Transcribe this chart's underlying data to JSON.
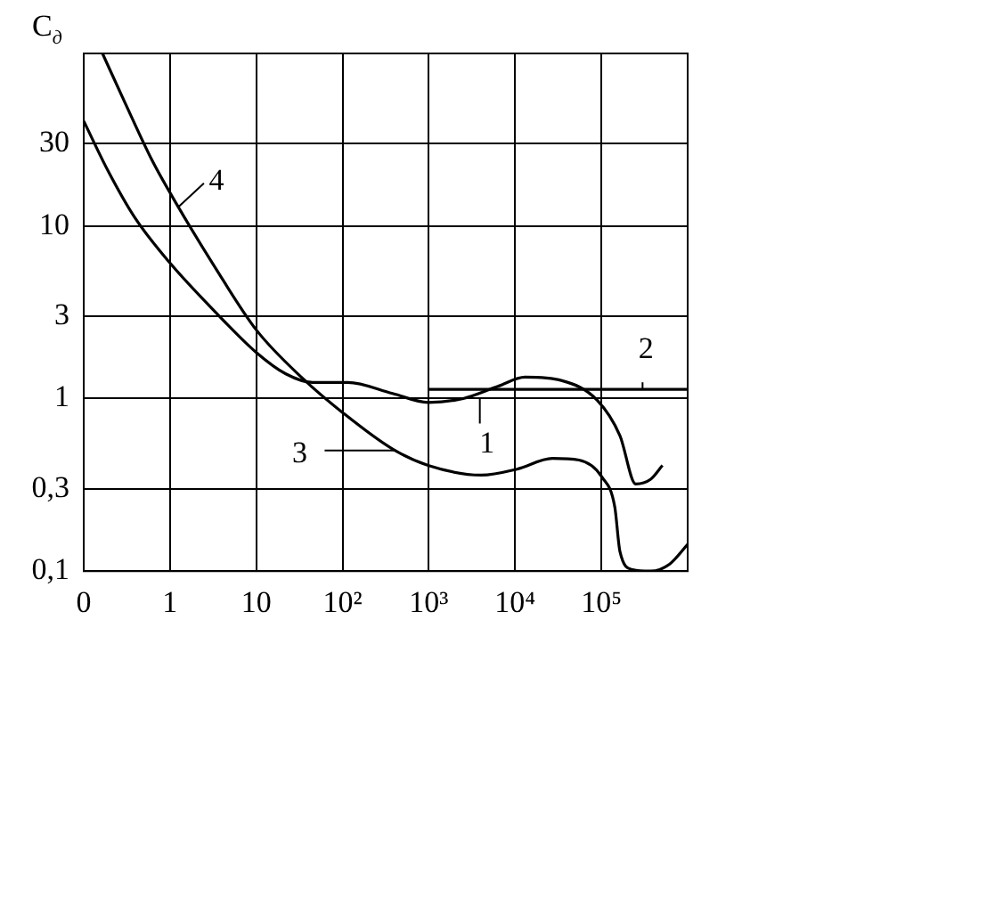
{
  "chart_data": {
    "type": "line",
    "ylabel": "C$_{д}$",
    "series": [
      {
        "color": "#000000",
        "x": [
          0.165,
          0.305,
          0.62,
          1.27,
          3.3,
          10,
          35,
          100,
          380,
          980,
          4050,
          10500,
          27000,
          55000,
          102000,
          143000,
          164000,
          230000,
          370000,
          620000,
          1000000
        ],
        "values": [
          100,
          51,
          24,
          12.7,
          5.8,
          2.5,
          1.3,
          0.83,
          0.51,
          0.41,
          0.36,
          0.39,
          0.45,
          0.44,
          0.35,
          0.235,
          0.13,
          0.102,
          0.1,
          0.11,
          0.143
        ]
      },
      {
        "color": "#000000",
        "x": [
          0.1,
          0.19,
          0.39,
          1,
          3.3,
          10,
          22,
          45,
          115,
          380,
          980,
          2500,
          6400,
          13000,
          35000,
          89000,
          164000,
          250000,
          370000,
          510000
        ],
        "values": [
          40.6,
          21,
          11.2,
          6.1,
          3.2,
          1.85,
          1.39,
          1.24,
          1.24,
          1.07,
          0.95,
          1.0,
          1.18,
          1.33,
          1.27,
          0.98,
          0.61,
          0.32,
          0.34,
          0.41
        ]
      },
      {
        "color": "#000000",
        "x": [
          1000,
          1000000
        ],
        "values": [
          1.13,
          1.13
        ]
      }
    ],
    "annotations": [
      {
        "text": "1",
        "x": 3900,
        "y": 1.0
      },
      {
        "text": "2",
        "x": 300000,
        "y": 1.13
      },
      {
        "text": "3",
        "x": 415,
        "y": 0.5
      },
      {
        "text": "4",
        "x": 1.27,
        "y": 13
      }
    ],
    "log": "xy",
    "xlim": [
      0.1,
      1000000
    ],
    "ylim": [
      0.1,
      100
    ],
    "xticks": [
      {
        "value": 0.1,
        "label": "0"
      },
      1,
      10,
      {
        "value": 100,
        "label": "10²"
      },
      {
        "value": 1000,
        "label": "10³"
      },
      {
        "value": 10000,
        "label": "10⁴"
      },
      {
        "value": 100000,
        "label": "10⁵"
      },
      {
        "value": 1000000,
        "label": null
      }
    ],
    "yticks": [
      {
        "value": 0.1,
        "label": "0,1"
      },
      {
        "value": 0.3,
        "label": "0,3"
      },
      1,
      3,
      10,
      30,
      {
        "value": 100,
        "label": null
      }
    ],
    "grid": true,
    "legend": false,
    "marker": "none",
    "line_style": "solid"
  }
}
